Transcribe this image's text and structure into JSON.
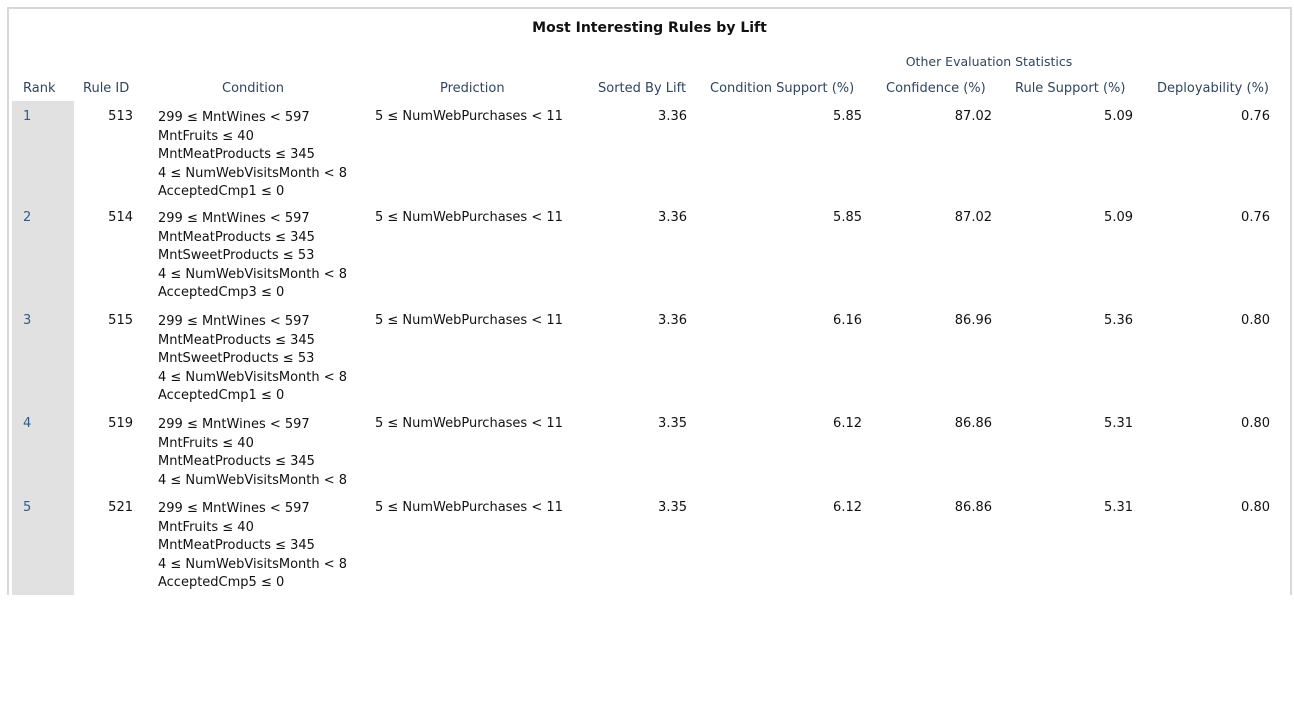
{
  "title": "Most Interesting Rules by Lift",
  "group_header": "Other Evaluation Statistics",
  "columns": {
    "rank": "Rank",
    "rule_id": "Rule ID",
    "condition": "Condition",
    "prediction": "Prediction",
    "lift": "Sorted By Lift",
    "cond_support": "Condition Support (%)",
    "confidence": "Confidence (%)",
    "rule_support": "Rule Support (%)",
    "deployability": "Deployability (%)"
  },
  "rows": [
    {
      "rank": "1",
      "rule_id": "513",
      "condition": [
        "299 ≤ MntWines < 597",
        "MntFruits ≤ 40",
        "MntMeatProducts ≤ 345",
        "4 ≤ NumWebVisitsMonth < 8",
        "AcceptedCmp1 ≤ 0"
      ],
      "prediction": "5 ≤ NumWebPurchases < 11",
      "lift": "3.36",
      "cond_support": "5.85",
      "confidence": "87.02",
      "rule_support": "5.09",
      "deployability": "0.76"
    },
    {
      "rank": "2",
      "rule_id": "514",
      "condition": [
        "299 ≤ MntWines < 597",
        "MntMeatProducts ≤ 345",
        "MntSweetProducts ≤ 53",
        "4 ≤ NumWebVisitsMonth < 8",
        "AcceptedCmp3 ≤ 0"
      ],
      "prediction": "5 ≤ NumWebPurchases < 11",
      "lift": "3.36",
      "cond_support": "5.85",
      "confidence": "87.02",
      "rule_support": "5.09",
      "deployability": "0.76"
    },
    {
      "rank": "3",
      "rule_id": "515",
      "condition": [
        "299 ≤ MntWines < 597",
        "MntMeatProducts ≤ 345",
        "MntSweetProducts ≤ 53",
        "4 ≤ NumWebVisitsMonth < 8",
        "AcceptedCmp1 ≤ 0"
      ],
      "prediction": "5 ≤ NumWebPurchases < 11",
      "lift": "3.36",
      "cond_support": "6.16",
      "confidence": "86.96",
      "rule_support": "5.36",
      "deployability": "0.80"
    },
    {
      "rank": "4",
      "rule_id": "519",
      "condition": [
        "299 ≤ MntWines < 597",
        "MntFruits ≤ 40",
        "MntMeatProducts ≤ 345",
        "4 ≤ NumWebVisitsMonth < 8"
      ],
      "prediction": "5 ≤ NumWebPurchases < 11",
      "lift": "3.35",
      "cond_support": "6.12",
      "confidence": "86.86",
      "rule_support": "5.31",
      "deployability": "0.80"
    },
    {
      "rank": "5",
      "rule_id": "521",
      "condition": [
        "299 ≤ MntWines < 597",
        "MntFruits ≤ 40",
        "MntMeatProducts ≤ 345",
        "4 ≤ NumWebVisitsMonth < 8",
        "AcceptedCmp5 ≤ 0"
      ],
      "prediction": "5 ≤ NumWebPurchases < 11",
      "lift": "3.35",
      "cond_support": "6.12",
      "confidence": "86.86",
      "rule_support": "5.31",
      "deployability": "0.80"
    }
  ]
}
